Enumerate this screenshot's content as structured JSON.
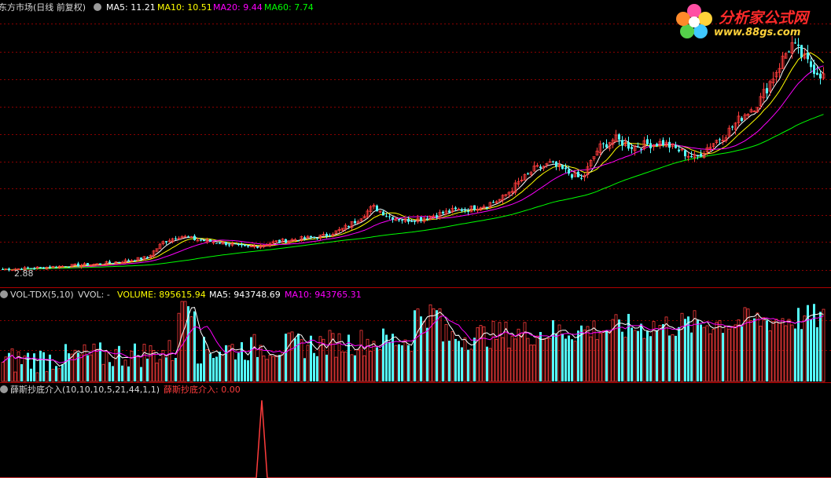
{
  "header": {
    "title": "东方市场(日线 前复权)",
    "ma5": "MA5: 11.21",
    "ma10": "MA10: 10.51",
    "ma20": "MA20: 9.44",
    "ma60": "MA60: 7.74"
  },
  "volume_header": {
    "name": "VOL-TDX(5,10)",
    "vvol": "VVOL: -",
    "volume": "VOLUME: 895615.94",
    "ma5": "MA5: 943748.69",
    "ma10": "MA10: 943765.31"
  },
  "indicator_header": {
    "name": "薛斯抄底介入(10,10,10,5,21,44,1,1)",
    "value": "薛斯抄底介入: 0.00"
  },
  "price_low_label": "2.88",
  "watermark": {
    "title": "分析家公式网",
    "url": "www.88gs.com"
  },
  "colors": {
    "up": "#ff3c3c",
    "down": "#54ffff",
    "ma5": "#ffffff",
    "ma10": "#ffff00",
    "ma20": "#ff00ff",
    "ma60": "#00ff00",
    "grid": "#8b0000"
  },
  "chart_data": {
    "type": "candlestick",
    "panels": [
      "price",
      "volume",
      "indicator"
    ],
    "price_low": 2.88,
    "ma_latest": {
      "MA5": 11.21,
      "MA10": 10.51,
      "MA20": 9.44,
      "MA60": 7.74
    },
    "volume_latest": {
      "VOLUME": 895615.94,
      "MA5": 943748.69,
      "MA10": 943765.31
    },
    "indicator_latest": 0.0,
    "close_trend": [
      2.88,
      2.9,
      2.95,
      3.0,
      3.05,
      3.1,
      3.15,
      3.25,
      3.35,
      3.5,
      4.3,
      4.6,
      4.4,
      4.3,
      4.2,
      4.0,
      4.1,
      4.3,
      4.4,
      4.5,
      4.6,
      4.9,
      5.4,
      6.1,
      5.6,
      5.4,
      5.5,
      5.7,
      5.9,
      6.0,
      6.2,
      6.5,
      7.3,
      8.0,
      8.3,
      7.9,
      7.5,
      9.1,
      9.6,
      9.2,
      9.3,
      9.4,
      9.0,
      8.6,
      9.3,
      9.9,
      10.8,
      11.5,
      13.0,
      14.5,
      13.5,
      12.8
    ]
  }
}
